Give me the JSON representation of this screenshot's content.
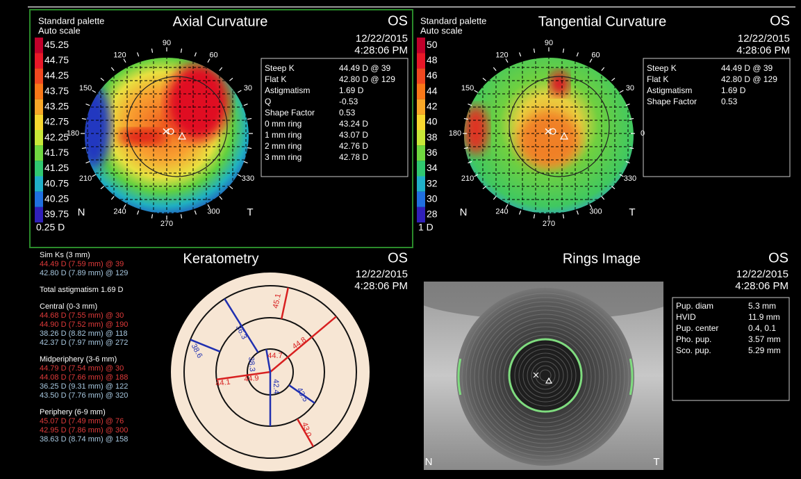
{
  "axial": {
    "palette": "Standard palette",
    "scale": "Auto scale",
    "title": "Axial Curvature",
    "eye": "OS",
    "date": "12/22/2015",
    "time": "4:28:06 PM",
    "legend": [
      "45.25",
      "44.75",
      "44.25",
      "43.75",
      "43.25",
      "42.75",
      "42.25",
      "41.75",
      "41.25",
      "40.75",
      "40.25",
      "39.75"
    ],
    "step": "0.25 D",
    "angles": [
      "90",
      "60",
      "30",
      "330",
      "300",
      "270",
      "240",
      "210",
      "180",
      "150",
      "120"
    ],
    "nasal": "N",
    "temporal": "T",
    "info": [
      [
        "Steep K",
        "44.49 D @ 39"
      ],
      [
        "Flat K",
        "42.80 D @ 129"
      ],
      [
        "Astigmatism",
        "1.69 D"
      ],
      [
        "Q",
        "-0.53"
      ],
      [
        "Shape Factor",
        "0.53"
      ],
      [
        "0 mm ring",
        "43.24 D"
      ],
      [
        "1 mm ring",
        "43.07 D"
      ],
      [
        "2 mm ring",
        "42.76 D"
      ],
      [
        "3 mm ring",
        "42.78 D"
      ]
    ]
  },
  "tangential": {
    "palette": "Standard palette",
    "scale": "Auto scale",
    "title": "Tangential Curvature",
    "eye": "OS",
    "date": "12/22/2015",
    "time": "4:28:06 PM",
    "legend": [
      "50",
      "48",
      "46",
      "44",
      "42",
      "40",
      "38",
      "36",
      "34",
      "32",
      "30",
      "28"
    ],
    "step": "1 D",
    "angles": [
      "90",
      "60",
      "30",
      "0",
      "330",
      "300",
      "270",
      "240",
      "210",
      "180",
      "150",
      "120"
    ],
    "nasal": "N",
    "temporal": "T",
    "info": [
      [
        "Steep K",
        "44.49 D @ 39"
      ],
      [
        "Flat K",
        "42.80 D @ 129"
      ],
      [
        "Astigmatism",
        "1.69 D"
      ],
      [
        "Shape Factor",
        "0.53"
      ]
    ]
  },
  "keratometry": {
    "title": "Keratometry",
    "eye": "OS",
    "date": "12/22/2015",
    "time": "4:28:06 PM",
    "sections": [
      {
        "heading": "Sim Ks (3 mm)",
        "lines": [
          {
            "text": "44.49 D (7.59 mm) @ 39",
            "color": "#e03a3a"
          },
          {
            "text": "42.80 D (7.89 mm) @ 129",
            "color": "#a8c8e0"
          }
        ]
      },
      {
        "heading": "Total astigmatism 1.69 D",
        "lines": []
      },
      {
        "heading": "Central (0-3 mm)",
        "lines": [
          {
            "text": "44.68 D (7.55 mm) @ 30",
            "color": "#e03a3a"
          },
          {
            "text": "44.90 D (7.52 mm) @ 190",
            "color": "#e03a3a"
          },
          {
            "text": "38.26 D (8.82 mm) @ 118",
            "color": "#a8c8e0"
          },
          {
            "text": "42.37 D (7.97 mm) @ 272",
            "color": "#a8c8e0"
          }
        ]
      },
      {
        "heading": "Midperiphery (3-6 mm)",
        "lines": [
          {
            "text": "44.79 D (7.54 mm) @ 30",
            "color": "#e03a3a"
          },
          {
            "text": "44.08 D (7.66 mm) @ 188",
            "color": "#e03a3a"
          },
          {
            "text": "36.25 D (9.31 mm) @ 122",
            "color": "#a8c8e0"
          },
          {
            "text": "43.50 D (7.76 mm) @ 320",
            "color": "#a8c8e0"
          }
        ]
      },
      {
        "heading": "Periphery (6-9 mm)",
        "lines": [
          {
            "text": "45.07 D (7.49 mm) @ 76",
            "color": "#e03a3a"
          },
          {
            "text": "42.95 D (7.86 mm) @ 300",
            "color": "#e03a3a"
          },
          {
            "text": "38.63 D (8.74 mm) @ 158",
            "color": "#a8c8e0"
          }
        ]
      }
    ],
    "map_labels": [
      "45.1",
      "36.3",
      "38.6",
      "44.8",
      "44.7",
      "38.3",
      "44.1",
      "44.9",
      "42.4",
      "43.5",
      "43.0"
    ]
  },
  "rings": {
    "title": "Rings Image",
    "eye": "OS",
    "date": "12/22/2015",
    "time": "4:28:06 PM",
    "nasal": "N",
    "temporal": "T",
    "info": [
      [
        "Pup. diam",
        "5.3 mm"
      ],
      [
        "HVID",
        "11.9 mm"
      ],
      [
        "Pup. center",
        "0.4, 0.1"
      ],
      [
        "Pho. pup.",
        "3.57 mm"
      ],
      [
        "Sco. pup.",
        "5.29 mm"
      ]
    ]
  }
}
